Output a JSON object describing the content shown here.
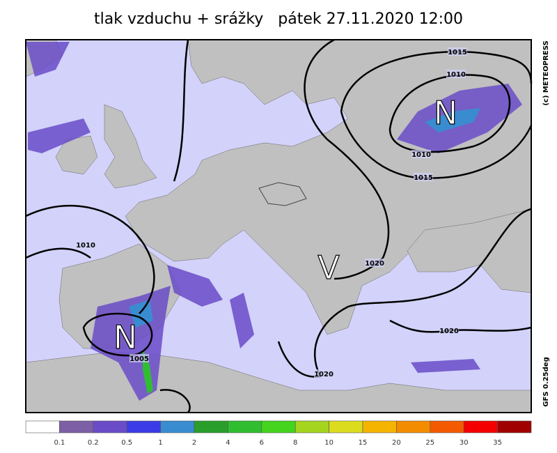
{
  "title": "tlak vzduchu + srážky   pátek 27.11.2020 12:00",
  "credit": "(c) METEOPRESS",
  "model": "GFS 0.25deg",
  "pressure_centers": [
    {
      "label": "N"
    },
    {
      "label": "N"
    },
    {
      "label": "V"
    }
  ],
  "isobar_labels": [
    "1015",
    "1010",
    "1010",
    "1015",
    "1010",
    "1020",
    "1020",
    "1005",
    "1020"
  ],
  "legend": {
    "colors": [
      "#ffffff",
      "#7d5fa5",
      "#6a4cc8",
      "#3c3ce6",
      "#3a8cd0",
      "#2a9e2a",
      "#30be30",
      "#44d41e",
      "#a4d41e",
      "#dcdc1e",
      "#f4b400",
      "#f48c00",
      "#f45a00",
      "#f40000",
      "#a00000"
    ],
    "labels": [
      "0.1",
      "0.2",
      "0.5",
      "1",
      "2",
      "4",
      "6",
      "8",
      "10",
      "15",
      "20",
      "25",
      "30",
      "35"
    ]
  }
}
